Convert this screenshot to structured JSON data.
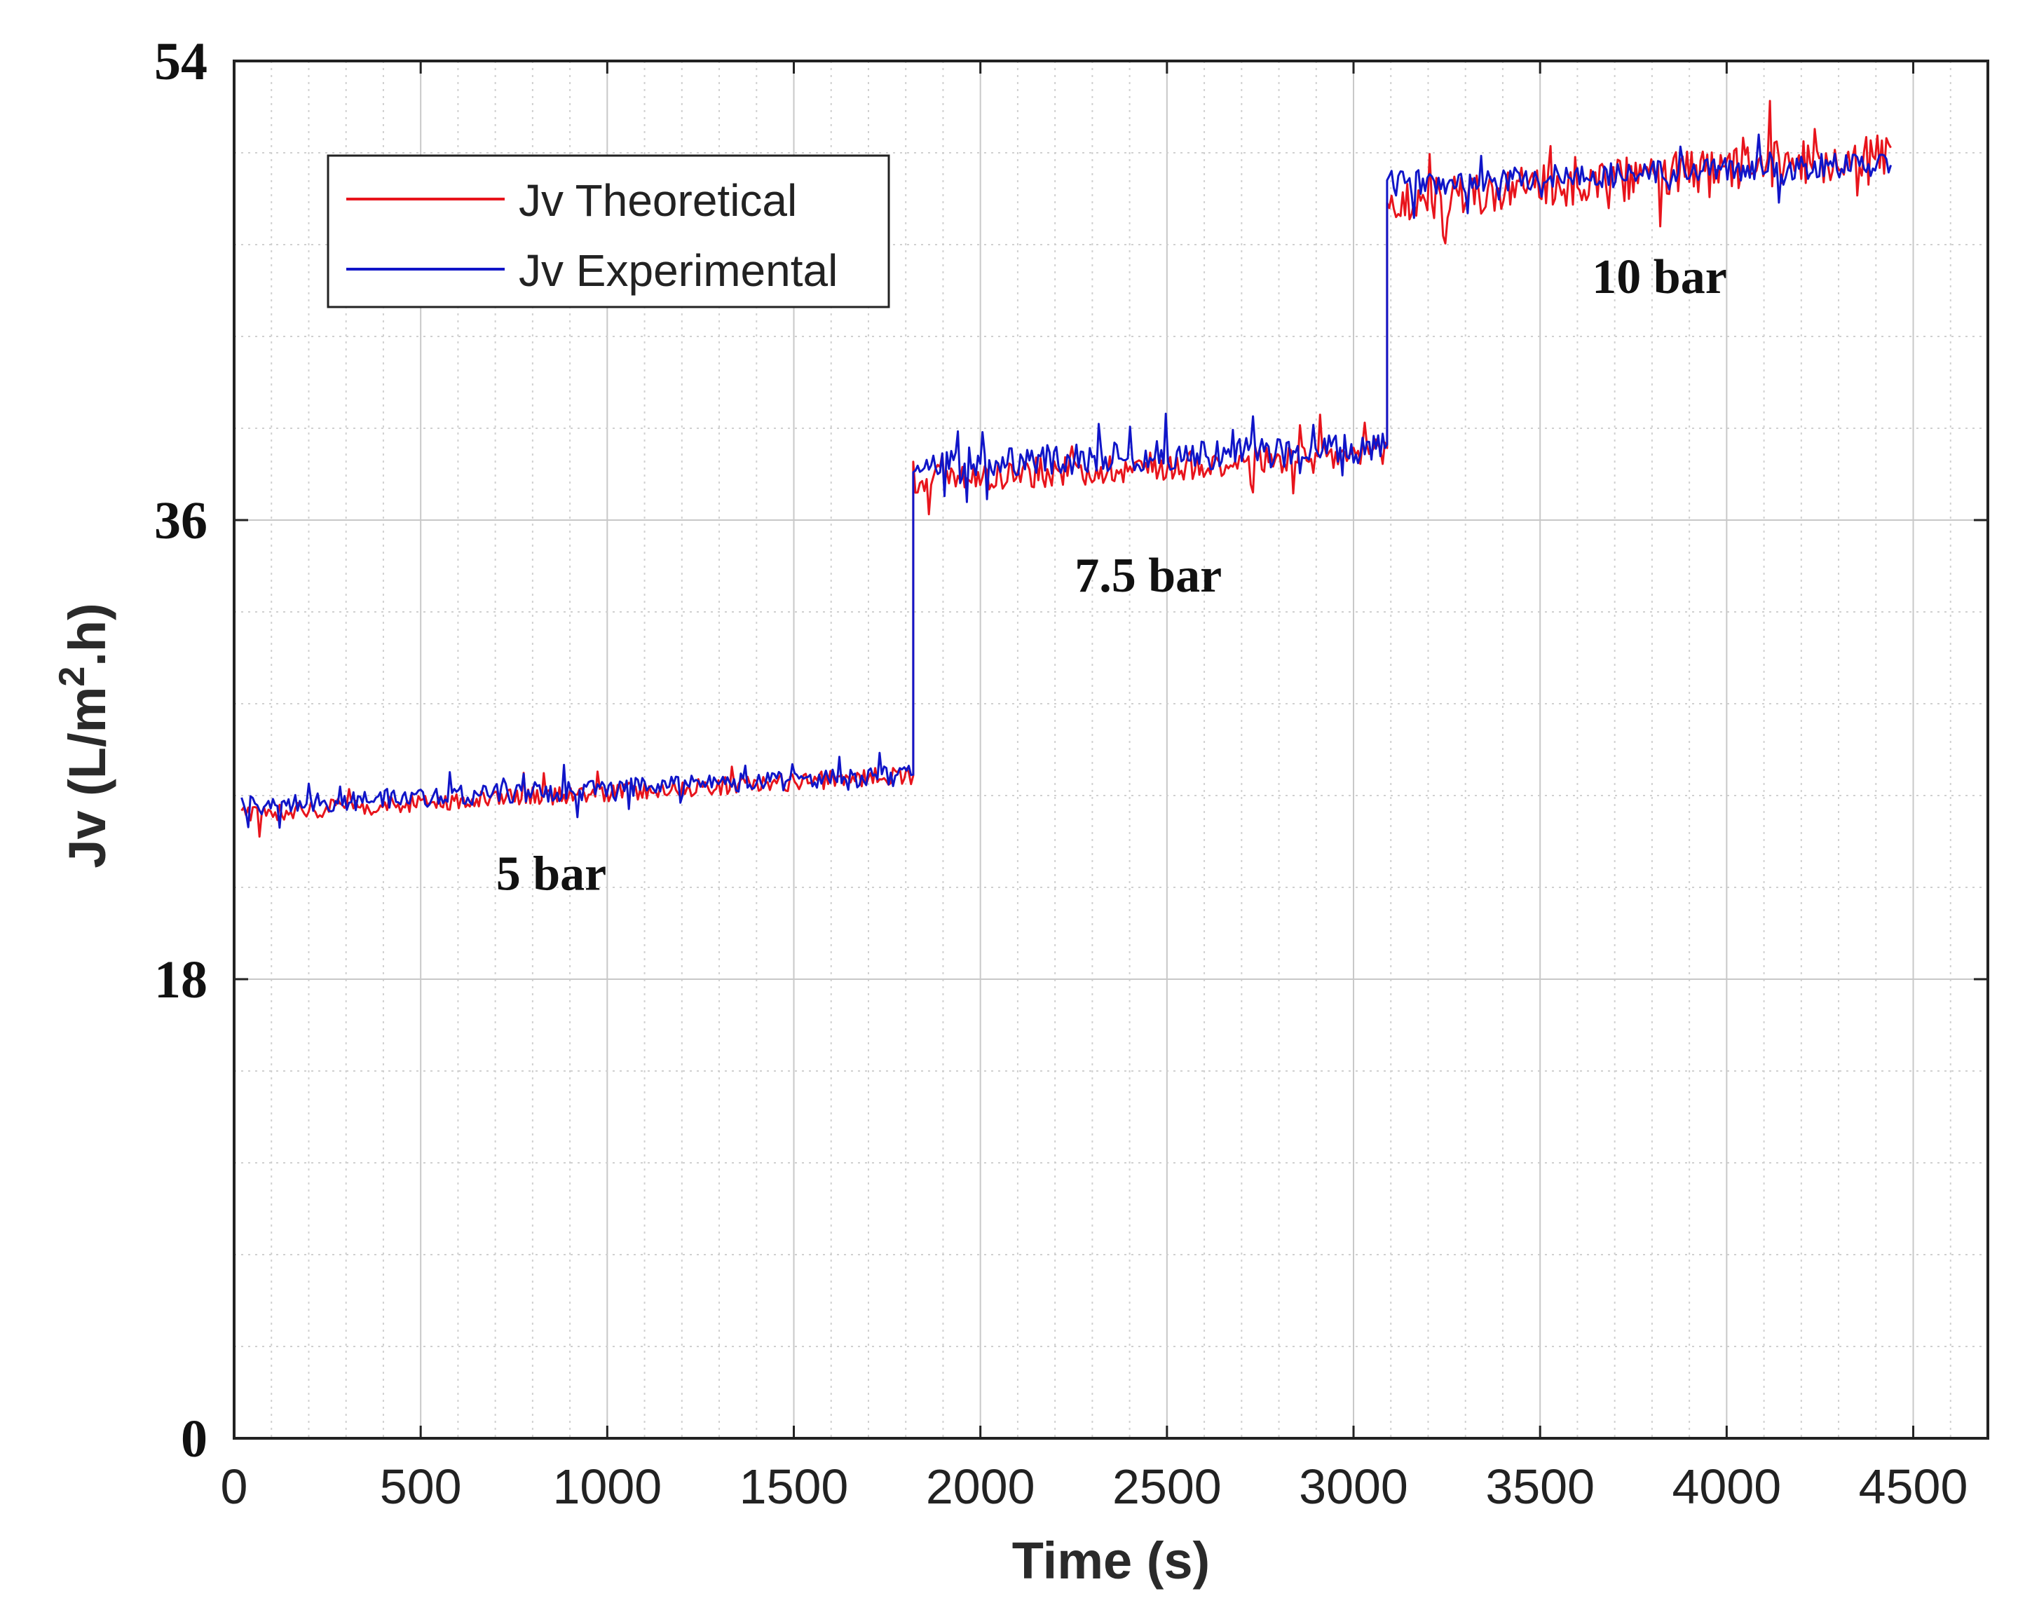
{
  "chart_data": {
    "type": "line",
    "title": "",
    "xlabel": "Time (s)",
    "ylabel_prefix": "Jv (L/m",
    "ylabel_sup": "2",
    "ylabel_suffix": ".h)",
    "xlim": [
      0,
      4700
    ],
    "ylim": [
      0,
      54
    ],
    "x_ticks": [
      0,
      500,
      1000,
      1500,
      2000,
      2500,
      3000,
      3500,
      4000,
      4500
    ],
    "x_tick_labels": [
      "0",
      "500",
      "1000",
      "1500",
      "2000",
      "2500",
      "3000",
      "3500",
      "4000",
      "4500"
    ],
    "y_ticks": [
      0,
      18,
      36,
      54
    ],
    "y_tick_labels": [
      "0",
      "18",
      "36",
      "54"
    ],
    "grid": true,
    "legend_position": "top-left",
    "series": [
      {
        "name": "Jv Theoretical",
        "color": "#e8141c",
        "seed": 11,
        "segments": [
          {
            "x_start": 20,
            "x_end": 1820,
            "y_start": 24.5,
            "y_end": 26.0,
            "noise": 0.35
          },
          {
            "x_start": 1820,
            "x_end": 3090,
            "y_start": 37.6,
            "y_end": 38.6,
            "noise": 0.6
          },
          {
            "x_start": 3090,
            "x_end": 4440,
            "y_start": 48.4,
            "y_end": 50.4,
            "noise": 0.9
          }
        ]
      },
      {
        "name": "Jv Experimental",
        "color": "#1015c8",
        "seed": 29,
        "segments": [
          {
            "x_start": 20,
            "x_end": 1820,
            "y_start": 24.8,
            "y_end": 26.0,
            "noise": 0.4
          },
          {
            "x_start": 1820,
            "x_end": 3090,
            "y_start": 38.2,
            "y_end": 38.8,
            "noise": 0.6
          },
          {
            "x_start": 3090,
            "x_end": 4440,
            "y_start": 49.2,
            "y_end": 50.0,
            "noise": 0.5
          }
        ]
      }
    ],
    "annotations": [
      {
        "text": "5 bar",
        "x": 850,
        "y": 21.5
      },
      {
        "text": "7.5 bar",
        "x": 2450,
        "y": 33.2
      },
      {
        "text": "10 bar",
        "x": 3820,
        "y": 44.9
      }
    ]
  }
}
